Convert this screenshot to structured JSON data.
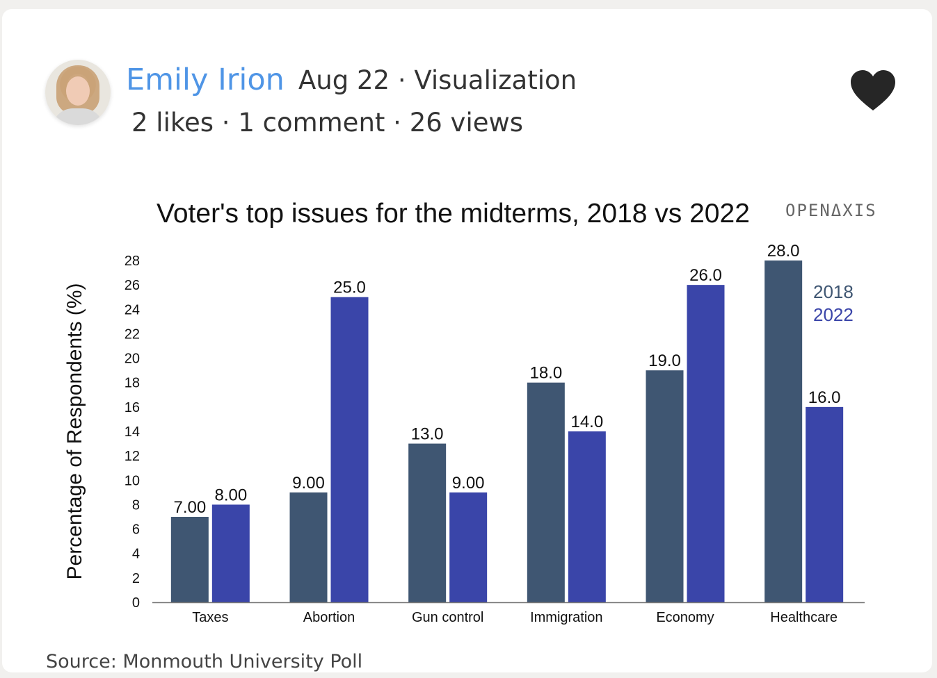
{
  "post": {
    "author": "Emily Irion",
    "date": "Aug 22",
    "category": "Visualization",
    "likes": "2 likes",
    "comments": "1 comment",
    "views": "26 views",
    "source": "Source: Monmouth University Poll"
  },
  "icons": {
    "heart": "heart-icon"
  },
  "colors": {
    "series_2018": "#3f5672",
    "series_2022": "#3a45a9"
  },
  "chart_data": {
    "type": "bar",
    "title": "Voter's top issues for the midterms, 2018 vs 2022",
    "brand": "OPENΔXIS",
    "xlabel": "",
    "ylabel": "Percentage of Respondents (%)",
    "categories": [
      "Taxes",
      "Abortion",
      "Gun control",
      "Immigration",
      "Economy",
      "Healthcare"
    ],
    "ylim": [
      0,
      28
    ],
    "yticks": [
      0,
      2,
      4,
      6,
      8,
      10,
      12,
      14,
      16,
      18,
      20,
      22,
      24,
      26,
      28
    ],
    "legend_placement": "top-right",
    "series": [
      {
        "name": "2018",
        "values": [
          7,
          9,
          13,
          18,
          19,
          28
        ],
        "labels": [
          "7.00",
          "9.00",
          "13.0",
          "18.0",
          "19.0",
          "28.0"
        ]
      },
      {
        "name": "2022",
        "values": [
          8,
          25,
          9,
          14,
          26,
          16
        ],
        "labels": [
          "8.00",
          "25.0",
          "9.00",
          "14.0",
          "26.0",
          "16.0"
        ]
      }
    ]
  }
}
